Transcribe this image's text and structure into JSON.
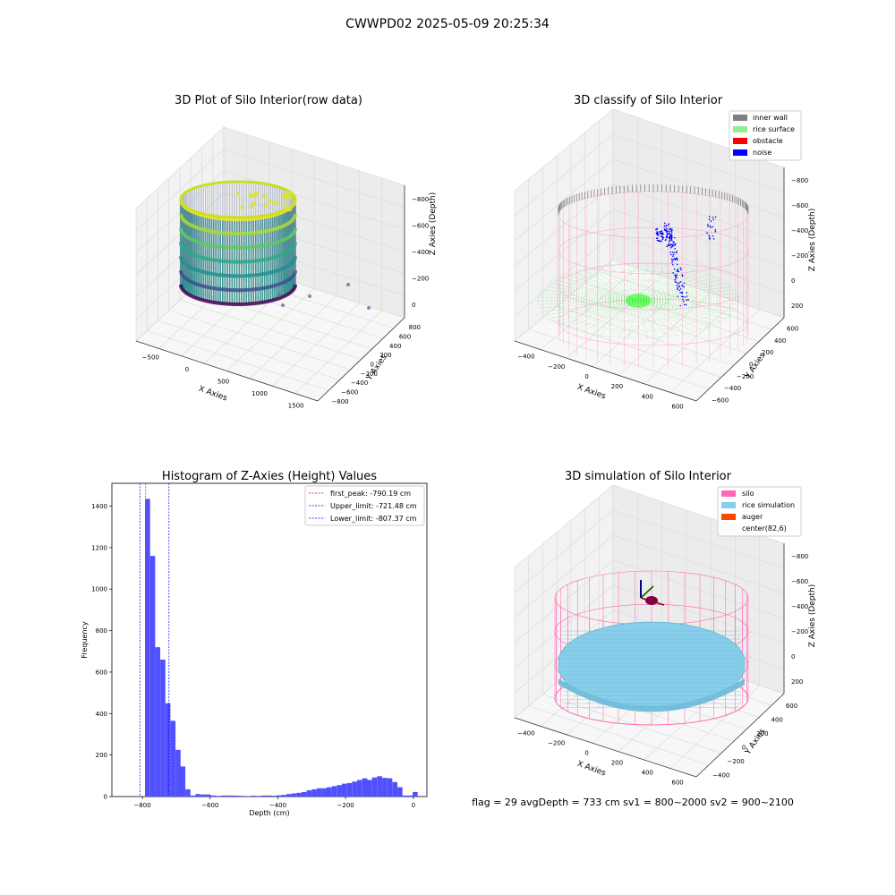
{
  "suptitle": "CWWPD02 2025-05-09 20:25:34",
  "footer": "flag = 29  avgDepth = 733 cm  sv1 = 800~2000  sv2 = 900~2100",
  "colors": {
    "rice_surface": "#90ee90",
    "inner_wall": "#808080",
    "obstacle": "#ff0000",
    "noise": "#0000ff",
    "silo": "#ff69b4",
    "rice_simulation": "#87ceeb",
    "auger": "#ff4500",
    "hist_bar": "#5050ff",
    "first_peak_line": "#ff0000",
    "limit_line": "#0000ff"
  },
  "chart_data": [
    {
      "type": "scatter",
      "subtype": "3d",
      "title": "3D Plot of Silo Interior(row data)",
      "xlabel": "X Axies",
      "ylabel": "Y Axies",
      "zlabel": "Z Axies (Depth)",
      "xticks": [
        "−500",
        "0",
        "500",
        "1000",
        "1500"
      ],
      "yticks": [
        "−800",
        "−600",
        "−400",
        "−200",
        "0",
        "200",
        "400",
        "600",
        "800"
      ],
      "zticks": [
        "−800",
        "−600",
        "−400",
        "−200",
        "0"
      ],
      "colormap": "viridis"
    },
    {
      "type": "scatter",
      "subtype": "3d",
      "title": "3D classify of Silo Interior",
      "xlabel": "X Axies",
      "ylabel": "Y Axies",
      "zlabel": "Z Axies (Depth)",
      "xticks": [
        "−400",
        "−200",
        "0",
        "200",
        "400",
        "600"
      ],
      "yticks": [
        "−600",
        "−400",
        "−200",
        "0",
        "200",
        "400",
        "600"
      ],
      "zticks": [
        "−800",
        "−600",
        "−400",
        "−200",
        "0",
        "200"
      ],
      "legend": [
        "inner wall",
        "rice surface",
        "obstacle",
        "noise"
      ],
      "legend_position": "top-right"
    },
    {
      "type": "bar",
      "subtype": "histogram",
      "title": "Histogram of Z-Axies (Height) Values",
      "xlabel": "Depth (cm)",
      "ylabel": "Frequency",
      "xlim": [
        -890,
        40
      ],
      "ylim": [
        0,
        1510
      ],
      "xticks": [
        -800,
        -600,
        -400,
        -200,
        0
      ],
      "xtick_labels": [
        "−800",
        "−600",
        "−400",
        "−200",
        "0"
      ],
      "yticks": [
        0,
        200,
        400,
        600,
        800,
        1000,
        1200,
        1400
      ],
      "bin_width": 14.8,
      "bins": [
        [
          -792,
          1435
        ],
        [
          -777,
          1160
        ],
        [
          -762,
          720
        ],
        [
          -747,
          660
        ],
        [
          -732,
          450
        ],
        [
          -717,
          365
        ],
        [
          -702,
          225
        ],
        [
          -688,
          145
        ],
        [
          -673,
          35
        ],
        [
          -658,
          5
        ],
        [
          -643,
          12
        ],
        [
          -628,
          10
        ],
        [
          -613,
          10
        ],
        [
          -598,
          5
        ],
        [
          -583,
          3
        ],
        [
          -568,
          5
        ],
        [
          -553,
          5
        ],
        [
          -538,
          5
        ],
        [
          -524,
          4
        ],
        [
          -509,
          3
        ],
        [
          -494,
          2
        ],
        [
          -479,
          4
        ],
        [
          -464,
          3
        ],
        [
          -449,
          5
        ],
        [
          -434,
          5
        ],
        [
          -419,
          4
        ],
        [
          -404,
          6
        ],
        [
          -390,
          8
        ],
        [
          -375,
          12
        ],
        [
          -360,
          15
        ],
        [
          -345,
          18
        ],
        [
          -330,
          22
        ],
        [
          -315,
          30
        ],
        [
          -300,
          35
        ],
        [
          -285,
          40
        ],
        [
          -270,
          40
        ],
        [
          -256,
          45
        ],
        [
          -241,
          50
        ],
        [
          -226,
          55
        ],
        [
          -211,
          62
        ],
        [
          -196,
          65
        ],
        [
          -181,
          72
        ],
        [
          -166,
          80
        ],
        [
          -151,
          88
        ],
        [
          -137,
          80
        ],
        [
          -122,
          92
        ],
        [
          -107,
          98
        ],
        [
          -92,
          90
        ],
        [
          -77,
          88
        ],
        [
          -62,
          70
        ],
        [
          -47,
          45
        ],
        [
          -32,
          5
        ],
        [
          -17,
          5
        ],
        [
          -2,
          22
        ]
      ],
      "vlines": [
        {
          "label": "first_peak: -790.19 cm",
          "value": -790.19,
          "style": "dashed",
          "color": "#ff0000"
        },
        {
          "label": "Upper_limit: -721.48 cm",
          "value": -721.48,
          "style": "dashed",
          "color": "#0000ff"
        },
        {
          "label": "Lower_limit: -807.37 cm",
          "value": -807.37,
          "style": "dashed",
          "color": "#0000ff"
        }
      ],
      "legend_position": "top-right"
    },
    {
      "type": "scatter",
      "subtype": "3d",
      "title": "3D simulation of Silo Interior",
      "xlabel": "X Axies",
      "ylabel": "Y Axies",
      "zlabel": "Z Axies (Depth)",
      "xticks": [
        "−400",
        "−200",
        "0",
        "200",
        "400",
        "600"
      ],
      "yticks": [
        "−400",
        "−200",
        "0",
        "200",
        "400",
        "600"
      ],
      "zticks": [
        "−800",
        "−600",
        "−400",
        "−200",
        "0",
        "200"
      ],
      "legend": [
        "silo",
        "rice simulation",
        "auger",
        "center(82,6)"
      ],
      "legend_position": "top-right"
    }
  ]
}
